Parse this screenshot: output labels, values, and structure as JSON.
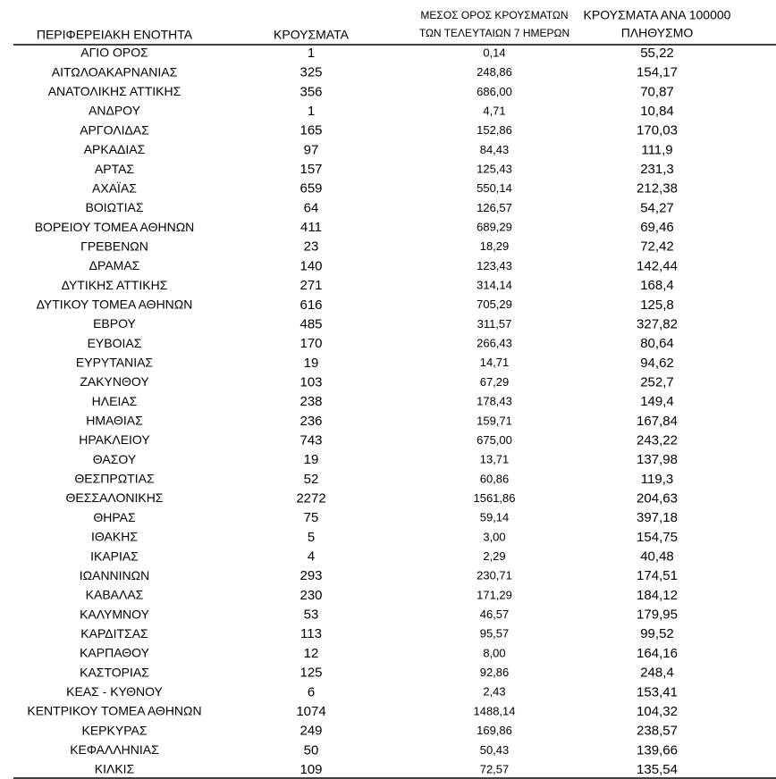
{
  "table": {
    "header": [
      [
        "ΠΕΡΙΦΕΡΕΙΑΚΗ ΕΝΟΤΗΤΑ"
      ],
      [
        "ΚΡΟΥΣΜΑΤΑ"
      ],
      [
        "ΜΕΣΟΣ ΟΡΟΣ ΚΡΟΥΣΜΑΤΩΝ",
        "ΤΩΝ ΤΕΛΕΥΤΑΙΩΝ 7 ΗΜΕΡΩΝ"
      ],
      [
        "ΚΡΟΥΣΜΑΤΑ ΑΝΑ 100000",
        "ΠΛΗΘΥΣΜΟ"
      ]
    ],
    "rows": [
      [
        "ΑΓΙΟ ΟΡΟΣ",
        "1",
        "0,14",
        "55,22"
      ],
      [
        "ΑΙΤΩΛΟΑΚΑΡΝΑΝΙΑΣ",
        "325",
        "248,86",
        "154,17"
      ],
      [
        "ΑΝΑΤΟΛΙΚΗΣ ΑΤΤΙΚΗΣ",
        "356",
        "686,00",
        "70,87"
      ],
      [
        "ΑΝΔΡΟΥ",
        "1",
        "4,71",
        "10,84"
      ],
      [
        "ΑΡΓΟΛΙΔΑΣ",
        "165",
        "152,86",
        "170,03"
      ],
      [
        "ΑΡΚΑΔΙΑΣ",
        "97",
        "84,43",
        "111,9"
      ],
      [
        "ΑΡΤΑΣ",
        "157",
        "125,43",
        "231,3"
      ],
      [
        "ΑΧΑΪΑΣ",
        "659",
        "550,14",
        "212,38"
      ],
      [
        "ΒΟΙΩΤΙΑΣ",
        "64",
        "126,57",
        "54,27"
      ],
      [
        "ΒΟΡΕΙΟΥ ΤΟΜΕΑ ΑΘΗΝΩΝ",
        "411",
        "689,29",
        "69,46"
      ],
      [
        "ΓΡΕΒΕΝΩΝ",
        "23",
        "18,29",
        "72,42"
      ],
      [
        "ΔΡΑΜΑΣ",
        "140",
        "123,43",
        "142,44"
      ],
      [
        "ΔΥΤΙΚΗΣ ΑΤΤΙΚΗΣ",
        "271",
        "314,14",
        "168,4"
      ],
      [
        "ΔΥΤΙΚΟΥ ΤΟΜΕΑ ΑΘΗΝΩΝ",
        "616",
        "705,29",
        "125,8"
      ],
      [
        "ΕΒΡΟΥ",
        "485",
        "311,57",
        "327,82"
      ],
      [
        "ΕΥΒΟΙΑΣ",
        "170",
        "266,43",
        "80,64"
      ],
      [
        "ΕΥΡΥΤΑΝΙΑΣ",
        "19",
        "14,71",
        "94,62"
      ],
      [
        "ΖΑΚΥΝΘΟΥ",
        "103",
        "67,29",
        "252,7"
      ],
      [
        "ΗΛΕΙΑΣ",
        "238",
        "178,43",
        "149,4"
      ],
      [
        "ΗΜΑΘΙΑΣ",
        "236",
        "159,71",
        "167,84"
      ],
      [
        "ΗΡΑΚΛΕΙΟΥ",
        "743",
        "675,00",
        "243,22"
      ],
      [
        "ΘΑΣΟΥ",
        "19",
        "13,71",
        "137,98"
      ],
      [
        "ΘΕΣΠΡΩΤΙΑΣ",
        "52",
        "60,86",
        "119,3"
      ],
      [
        "ΘΕΣΣΑΛΟΝΙΚΗΣ",
        "2272",
        "1561,86",
        "204,63"
      ],
      [
        "ΘΗΡΑΣ",
        "75",
        "59,14",
        "397,18"
      ],
      [
        "ΙΘΑΚΗΣ",
        "5",
        "3,00",
        "154,75"
      ],
      [
        "ΙΚΑΡΙΑΣ",
        "4",
        "2,29",
        "40,48"
      ],
      [
        "ΙΩΑΝΝΙΝΩΝ",
        "293",
        "230,71",
        "174,51"
      ],
      [
        "ΚΑΒΑΛΑΣ",
        "230",
        "171,29",
        "184,12"
      ],
      [
        "ΚΑΛΥΜΝΟΥ",
        "53",
        "46,57",
        "179,95"
      ],
      [
        "ΚΑΡΔΙΤΣΑΣ",
        "113",
        "95,57",
        "99,52"
      ],
      [
        "ΚΑΡΠΑΘΟΥ",
        "12",
        "8,00",
        "164,16"
      ],
      [
        "ΚΑΣΤΟΡΙΑΣ",
        "125",
        "92,86",
        "248,4"
      ],
      [
        "ΚΕΑΣ - ΚΥΘΝΟΥ",
        "6",
        "2,43",
        "153,41"
      ],
      [
        "ΚΕΝΤΡΙΚΟΥ ΤΟΜΕΑ ΑΘΗΝΩΝ",
        "1074",
        "1488,14",
        "104,32"
      ],
      [
        "ΚΕΡΚΥΡΑΣ",
        "249",
        "169,86",
        "238,57"
      ],
      [
        "ΚΕΦΑΛΛΗΝΙΑΣ",
        "50",
        "50,43",
        "139,66"
      ],
      [
        "ΚΙΛΚΙΣ",
        "109",
        "72,57",
        "135,54"
      ]
    ]
  }
}
